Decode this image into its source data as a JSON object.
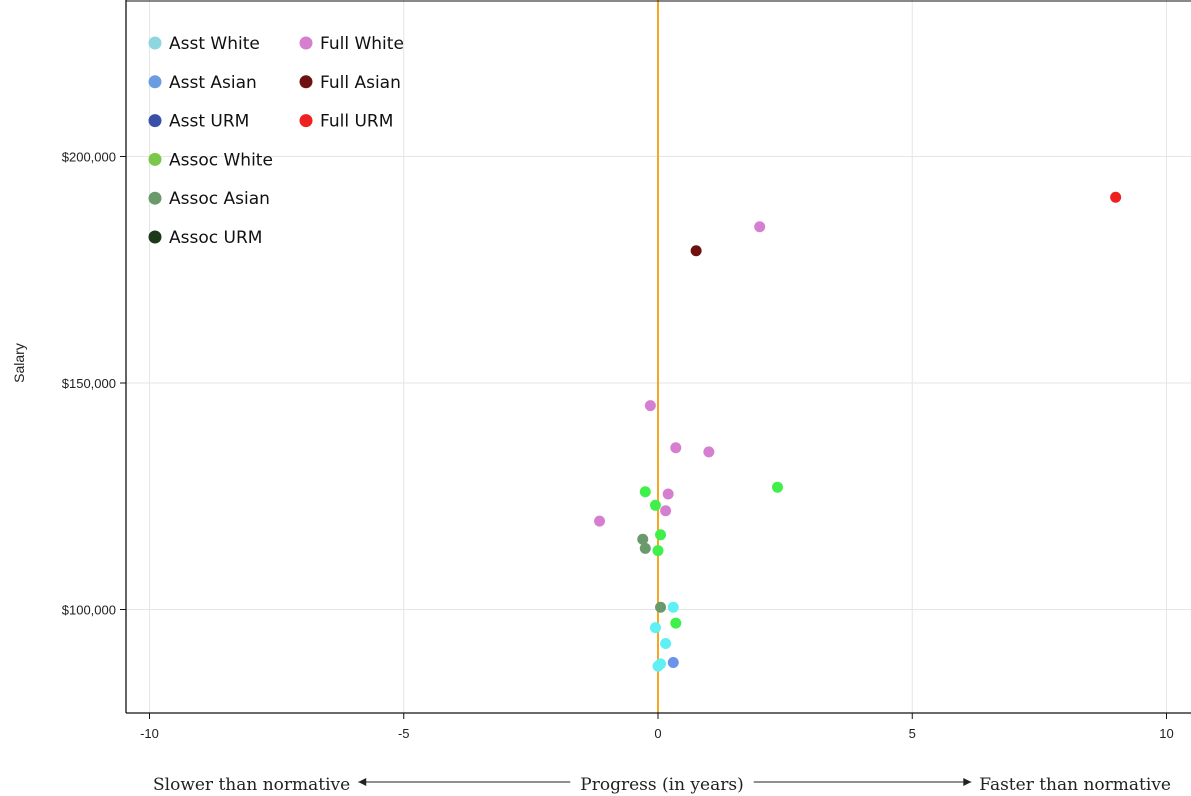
{
  "chart_data": {
    "type": "scatter",
    "title": "",
    "xlabel": "",
    "ylabel": "Salary",
    "xlim": [
      -10.5,
      10.5
    ],
    "ylim": [
      80000,
      233000
    ],
    "grid": true,
    "legend_position": "top-left",
    "x_ticks": [
      {
        "value": -10,
        "label": "-10"
      },
      {
        "value": -5,
        "label": "-5"
      },
      {
        "value": 0,
        "label": "0"
      },
      {
        "value": 5,
        "label": "5"
      },
      {
        "value": 10,
        "label": "10"
      }
    ],
    "y_ticks": [
      {
        "value": 100000,
        "label": "$100,000"
      },
      {
        "value": 150000,
        "label": "$150,000"
      },
      {
        "value": 200000,
        "label": "$200,000"
      }
    ],
    "reference_line": {
      "x": 0,
      "color": "#f5a623"
    },
    "x_caption": {
      "left": "Slower than normative",
      "center": "Progress (in years)",
      "right": "Faster than normative"
    },
    "series": [
      {
        "name": "Asst White",
        "color": "#5ff0f5",
        "legend_color": "#8fd6e0",
        "points": [
          [
            0.3,
            100500
          ],
          [
            -0.05,
            96000
          ],
          [
            0.15,
            92500
          ],
          [
            0.05,
            88000
          ],
          [
            0.0,
            87500
          ]
        ]
      },
      {
        "name": "Asst Asian",
        "color": "#6b93e8",
        "legend_color": "#6b9be0",
        "points": [
          [
            0.3,
            88300
          ]
        ]
      },
      {
        "name": "Asst URM",
        "color": "#3a4fa8",
        "legend_color": "#3a4fa8",
        "points": []
      },
      {
        "name": "Assoc White",
        "color": "#3ff04a",
        "legend_color": "#7ac84a",
        "points": [
          [
            -0.25,
            126000
          ],
          [
            -0.05,
            123000
          ],
          [
            2.35,
            127000
          ],
          [
            0.05,
            116500
          ],
          [
            0.0,
            113000
          ],
          [
            0.35,
            97000
          ]
        ]
      },
      {
        "name": "Assoc Asian",
        "color": "#6a9a6c",
        "legend_color": "#6a9a6c",
        "points": [
          [
            -0.3,
            115500
          ],
          [
            -0.25,
            113500
          ],
          [
            0.05,
            100500
          ]
        ]
      },
      {
        "name": "Assoc URM",
        "color": "#1c3a1a",
        "legend_color": "#1c3a1a",
        "points": []
      },
      {
        "name": "Full White",
        "color": "#d67fd0",
        "legend_color": "#d67fd0",
        "points": [
          [
            2.0,
            184500
          ],
          [
            -0.15,
            145000
          ],
          [
            0.35,
            135700
          ],
          [
            1.0,
            134800
          ],
          [
            0.2,
            125500
          ],
          [
            0.15,
            121800
          ],
          [
            -1.15,
            119500
          ]
        ]
      },
      {
        "name": "Full Asian",
        "color": "#6e1111",
        "legend_color": "#6e1111",
        "points": [
          [
            0.75,
            179200
          ]
        ]
      },
      {
        "name": "Full URM",
        "color": "#ee2020",
        "legend_color": "#ee2020",
        "points": [
          [
            9.0,
            191000
          ]
        ]
      }
    ]
  }
}
